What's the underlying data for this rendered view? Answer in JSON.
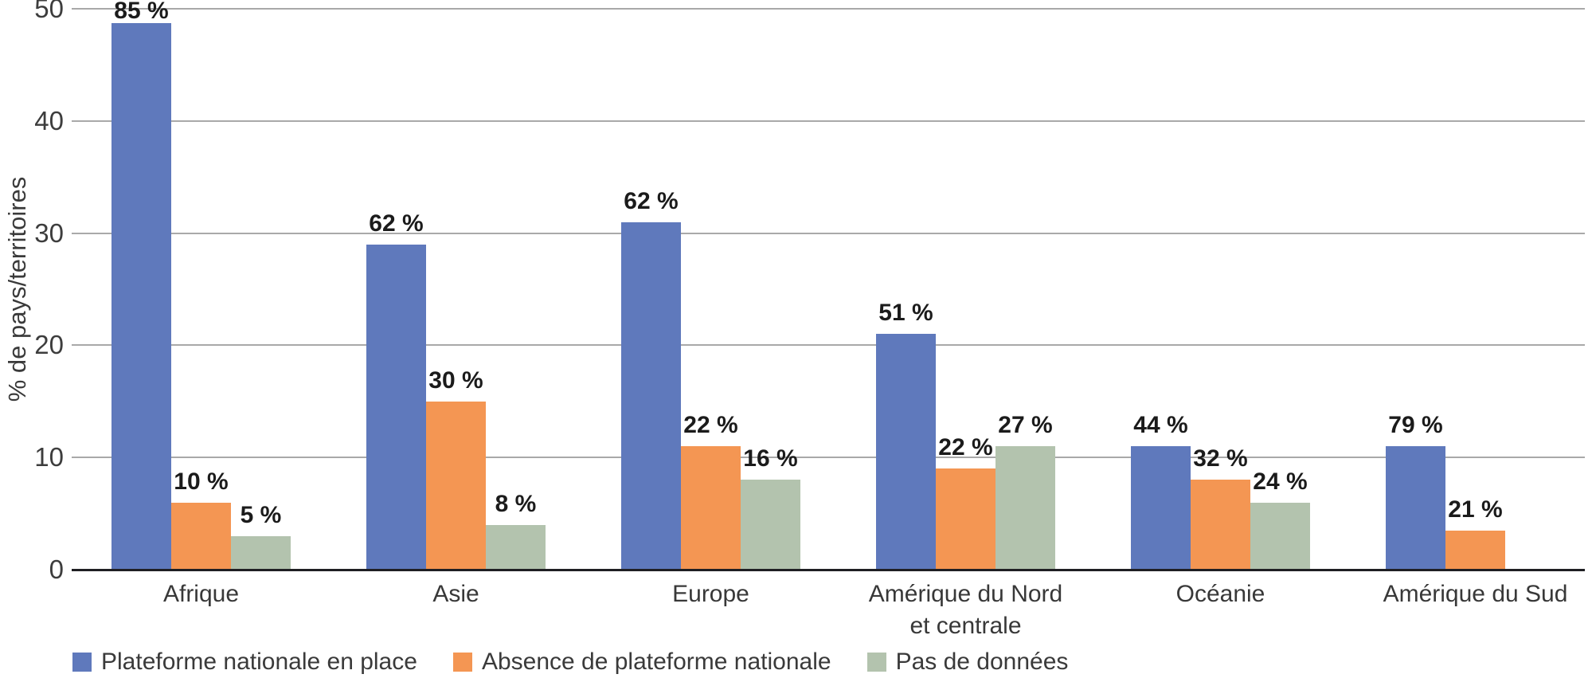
{
  "chart_data": {
    "type": "bar",
    "title": "",
    "ylabel": "% de pays/territoires",
    "xlabel": "",
    "ylim": [
      0,
      50
    ],
    "yticks": [
      0,
      10,
      20,
      30,
      40,
      50
    ],
    "grid": true,
    "legend_position": "bottom",
    "categories": [
      "Afrique",
      "Asie",
      "Europe",
      "Amérique du Nord\net centrale",
      "Océanie",
      "Amérique du Sud"
    ],
    "series": [
      {
        "name": "Plateforme nationale en place",
        "color": "#5F79BC",
        "bar_heights_axis_units": [
          48.7,
          29,
          31,
          21,
          11,
          11
        ],
        "percent_labels": [
          "85 %",
          "62 %",
          "62 %",
          "51 %",
          "44 %",
          "79 %"
        ]
      },
      {
        "name": "Absence de plateforme nationale",
        "color": "#F49653",
        "bar_heights_axis_units": [
          6,
          15,
          11,
          9,
          8,
          3.5
        ],
        "percent_labels": [
          "10 %",
          "30 %",
          "22 %",
          "22 %",
          "32 %",
          "21 %"
        ]
      },
      {
        "name": "Pas de données",
        "color": "#B3C3AE",
        "bar_heights_axis_units": [
          3,
          4,
          8,
          11,
          6,
          0
        ],
        "percent_labels": [
          "5 %",
          "8 %",
          "16 %",
          "27 %",
          "24 %",
          ""
        ]
      }
    ]
  }
}
